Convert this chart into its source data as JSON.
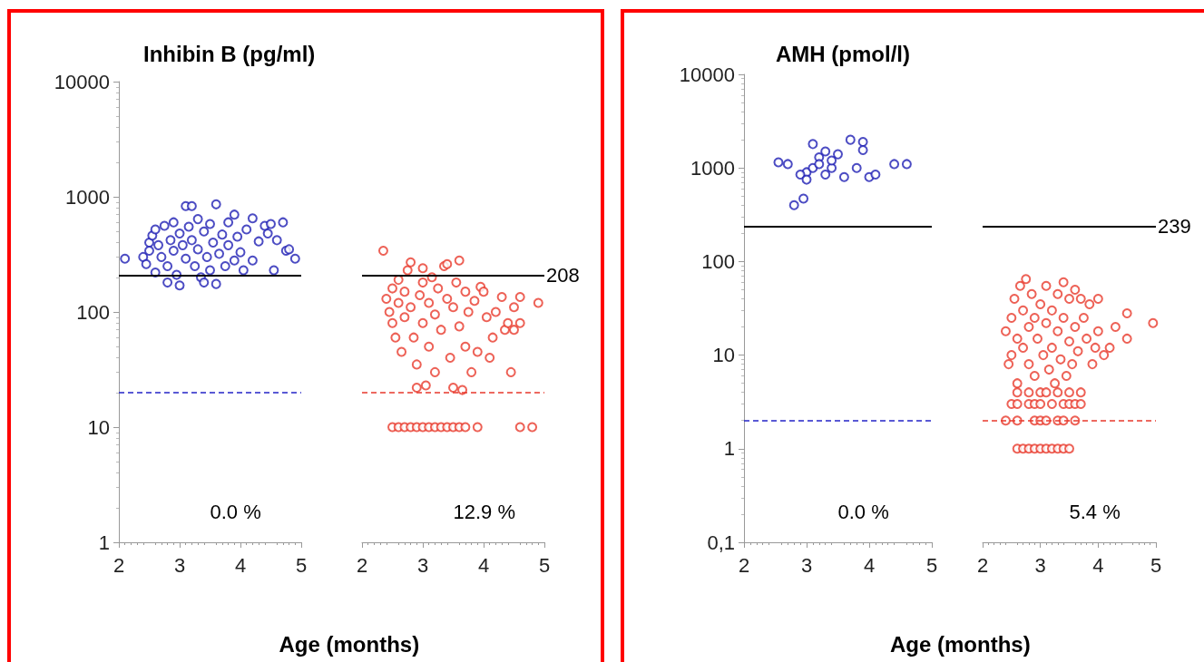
{
  "chart_data": [
    {
      "type": "scatter",
      "title": "Inhibin B (pg/ml)",
      "xlabel": "Age (months)",
      "marker": "circle",
      "log": "y",
      "xlim": [
        2,
        5
      ],
      "xticks": [
        2,
        3,
        4,
        5
      ],
      "ylim": [
        1,
        10000
      ],
      "yticks": [
        1,
        10,
        100,
        1000,
        10000
      ],
      "ref_lines": [
        {
          "axis": "y",
          "value": 208,
          "color": "#000000",
          "line_style": "solid"
        },
        {
          "axis": "y",
          "value": 20,
          "color": "#2323c8",
          "line_style": "dashed"
        }
      ],
      "annotations": [
        "0.0 %"
      ],
      "series": [
        {
          "color": "#1f1fb4",
          "x": [
            2.1,
            2.4,
            2.45,
            2.5,
            2.5,
            2.55,
            2.6,
            2.6,
            2.65,
            2.7,
            2.75,
            2.8,
            2.8,
            2.85,
            2.9,
            2.9,
            2.95,
            3.0,
            3.0,
            3.05,
            3.1,
            3.1,
            3.15,
            3.2,
            3.2,
            3.25,
            3.3,
            3.3,
            3.35,
            3.4,
            3.4,
            3.45,
            3.5,
            3.5,
            3.55,
            3.6,
            3.6,
            3.65,
            3.7,
            3.75,
            3.8,
            3.8,
            3.9,
            3.9,
            3.95,
            4.0,
            4.05,
            4.1,
            4.2,
            4.2,
            4.3,
            4.4,
            4.45,
            4.5,
            4.55,
            4.6,
            4.7,
            4.75,
            4.8,
            4.9
          ],
          "values": [
            290,
            300,
            260,
            400,
            340,
            460,
            520,
            220,
            380,
            300,
            560,
            250,
            180,
            420,
            600,
            340,
            210,
            170,
            480,
            380,
            830,
            290,
            550,
            830,
            420,
            250,
            640,
            350,
            200,
            180,
            500,
            300,
            580,
            230,
            400,
            860,
            175,
            320,
            470,
            250,
            600,
            380,
            700,
            280,
            450,
            330,
            230,
            520,
            650,
            280,
            410,
            560,
            480,
            580,
            230,
            420,
            600,
            340,
            350,
            290
          ]
        }
      ]
    },
    {
      "type": "scatter",
      "marker": "circle",
      "log": "y",
      "tick_labels": "x",
      "xlim": [
        2,
        5
      ],
      "xticks": [
        2,
        3,
        4,
        5
      ],
      "ylim": [
        1,
        10000
      ],
      "ref_lines": [
        {
          "axis": "y",
          "value": 208,
          "label": "208",
          "color": "#000000",
          "line_style": "solid"
        },
        {
          "axis": "y",
          "value": 20,
          "color": "#e8392c",
          "line_style": "dashed"
        }
      ],
      "annotations": [
        "12.9 %"
      ],
      "series": [
        {
          "color": "#e8392c",
          "x": [
            2.35,
            2.4,
            2.45,
            2.5,
            2.5,
            2.55,
            2.6,
            2.6,
            2.65,
            2.7,
            2.7,
            2.75,
            2.8,
            2.8,
            2.85,
            2.9,
            2.9,
            2.95,
            3.0,
            3.0,
            3.0,
            3.05,
            3.1,
            3.1,
            3.15,
            3.2,
            3.2,
            3.25,
            3.3,
            3.35,
            3.4,
            3.4,
            3.45,
            3.5,
            3.5,
            3.55,
            3.6,
            3.6,
            3.65,
            3.7,
            3.7,
            3.75,
            3.8,
            3.85,
            3.9,
            3.95,
            4.0,
            4.05,
            4.1,
            4.15,
            4.2,
            4.3,
            4.35,
            4.4,
            4.45,
            4.5,
            4.5,
            4.6,
            4.6,
            4.9,
            2.5,
            2.6,
            2.7,
            2.8,
            2.9,
            3.0,
            3.1,
            3.2,
            3.3,
            3.4,
            3.5,
            3.6,
            3.7,
            3.9,
            4.6,
            4.8
          ],
          "values": [
            340,
            130,
            100,
            160,
            80,
            60,
            190,
            120,
            45,
            150,
            90,
            230,
            270,
            110,
            60,
            35,
            22,
            140,
            240,
            180,
            80,
            23,
            120,
            50,
            200,
            95,
            30,
            160,
            70,
            250,
            260,
            130,
            40,
            110,
            22,
            180,
            280,
            75,
            21,
            150,
            50,
            100,
            30,
            125,
            45,
            165,
            150,
            90,
            40,
            60,
            100,
            135,
            70,
            80,
            30,
            110,
            70,
            135,
            80,
            120,
            10,
            10,
            10,
            10,
            10,
            10,
            10,
            10,
            10,
            10,
            10,
            10,
            10,
            10,
            10,
            10
          ]
        }
      ]
    },
    {
      "type": "scatter",
      "title": "AMH (pmol/l)",
      "xlabel": "Age (months)",
      "marker": "circle",
      "log": "y",
      "xlim": [
        2,
        5
      ],
      "xticks": [
        2,
        3,
        4,
        5
      ],
      "ylim": [
        0.1,
        10000
      ],
      "yticks": [
        {
          "value": 0.1,
          "label": "0,1"
        },
        1,
        10,
        100,
        1000,
        10000
      ],
      "ref_lines": [
        {
          "axis": "y",
          "value": 239,
          "color": "#000000",
          "line_style": "solid"
        },
        {
          "axis": "y",
          "value": 2,
          "color": "#2323c8",
          "line_style": "dashed"
        }
      ],
      "annotations": [
        "0.0 %"
      ],
      "series": [
        {
          "color": "#1f1fb4",
          "x": [
            2.55,
            2.7,
            2.8,
            2.95,
            3.0,
            3.1,
            3.2,
            3.3,
            3.1,
            2.9,
            3.0,
            3.2,
            3.4,
            3.5,
            3.6,
            3.7,
            3.9,
            3.9,
            3.8,
            4.0,
            4.1,
            4.4,
            4.6,
            3.3,
            3.4
          ],
          "values": [
            1150,
            1100,
            400,
            470,
            900,
            1800,
            1300,
            1500,
            1000,
            850,
            750,
            1100,
            1000,
            1400,
            800,
            2000,
            1900,
            1550,
            1000,
            800,
            850,
            1100,
            1100,
            850,
            1200
          ]
        }
      ]
    },
    {
      "type": "scatter",
      "marker": "circle",
      "log": "y",
      "tick_labels": "x",
      "xlim": [
        2,
        5
      ],
      "xticks": [
        2,
        3,
        4,
        5
      ],
      "ylim": [
        0.1,
        10000
      ],
      "ref_lines": [
        {
          "axis": "y",
          "value": 239,
          "label": "239",
          "color": "#000000",
          "line_style": "solid"
        },
        {
          "axis": "y",
          "value": 2,
          "color": "#e8392c",
          "line_style": "dashed"
        }
      ],
      "annotations": [
        "5.4 %"
      ],
      "series": [
        {
          "color": "#e8392c",
          "x": [
            2.4,
            2.45,
            2.5,
            2.5,
            2.55,
            2.6,
            2.6,
            2.65,
            2.7,
            2.7,
            2.75,
            2.8,
            2.8,
            2.85,
            2.9,
            2.9,
            2.95,
            3.0,
            3.0,
            3.05,
            3.1,
            3.1,
            3.15,
            3.2,
            3.2,
            3.25,
            3.3,
            3.3,
            3.35,
            3.4,
            3.4,
            3.45,
            3.5,
            3.5,
            3.55,
            3.6,
            3.6,
            3.65,
            3.7,
            3.75,
            3.8,
            3.85,
            3.9,
            3.95,
            4.0,
            4.0,
            4.1,
            4.2,
            4.3,
            4.5,
            4.5,
            4.95,
            2.6,
            2.8,
            3.1,
            3.3,
            3.5,
            3.7,
            2.5,
            2.6,
            2.8,
            2.9,
            3.0,
            3.2,
            3.4,
            3.5,
            3.6,
            3.7,
            2.4,
            2.6,
            2.9,
            3.0,
            3.1,
            3.3,
            3.4,
            3.6,
            2.6,
            2.7,
            2.8,
            2.9,
            3.0,
            3.1,
            3.2,
            3.3,
            3.4,
            3.5
          ],
          "values": [
            18,
            8,
            25,
            10,
            40,
            15,
            5,
            55,
            30,
            12,
            65,
            20,
            8,
            45,
            25,
            6,
            15,
            35,
            4,
            10,
            55,
            22,
            7,
            30,
            12,
            5,
            45,
            18,
            9,
            60,
            25,
            6,
            40,
            14,
            8,
            50,
            20,
            11,
            40,
            25,
            15,
            35,
            8,
            12,
            40,
            18,
            10,
            12,
            20,
            28,
            15,
            22,
            4,
            4,
            4,
            4,
            4,
            4,
            3,
            3,
            3,
            3,
            3,
            3,
            3,
            3,
            3,
            3,
            2,
            2,
            2,
            2,
            2,
            2,
            2,
            2,
            1,
            1,
            1,
            1,
            1,
            1,
            1,
            1,
            1,
            1
          ]
        }
      ]
    }
  ]
}
